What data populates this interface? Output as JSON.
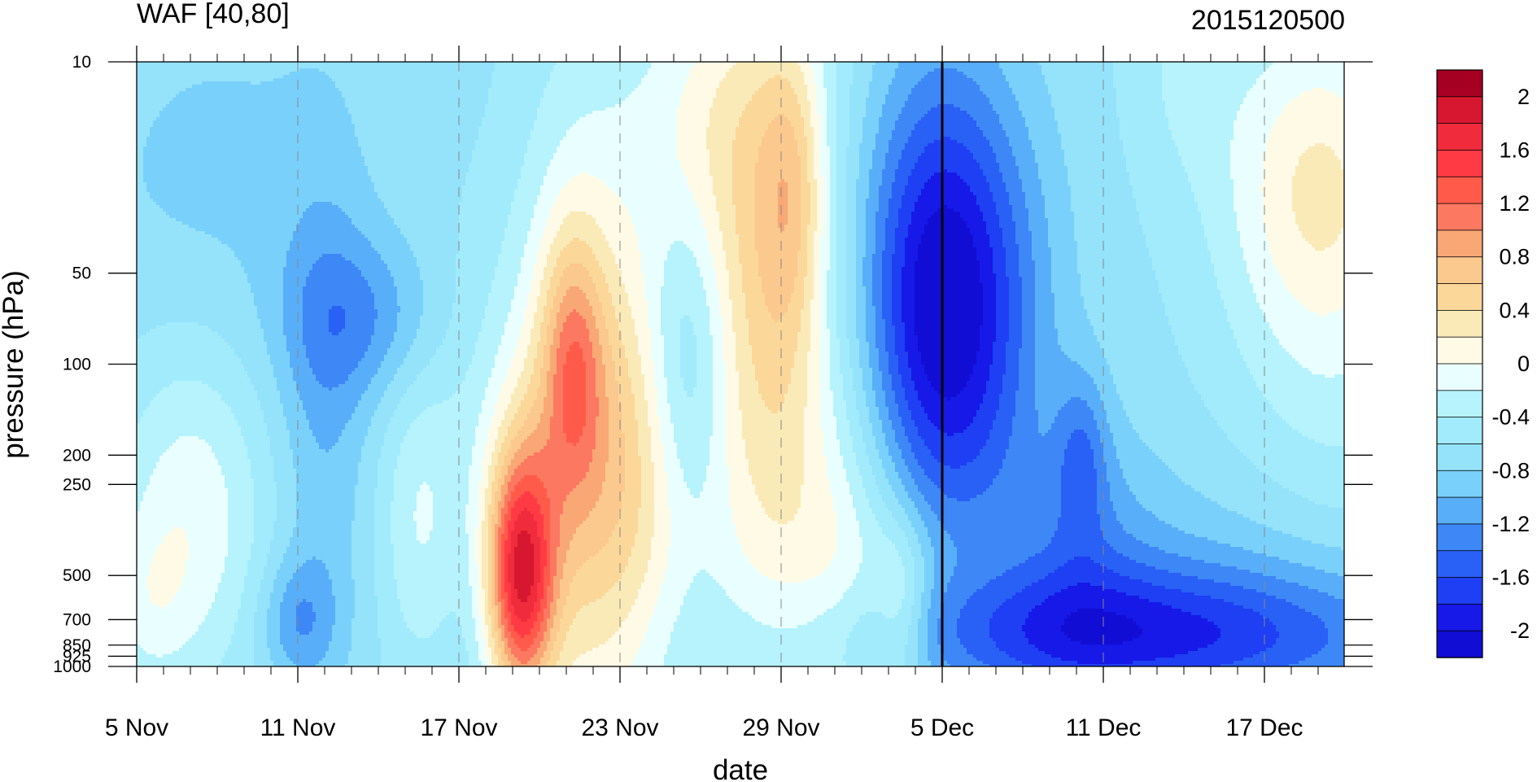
{
  "chart_data": {
    "type": "heatmap",
    "title": "WAF [40,80]",
    "subtitle": "2015120500",
    "xlabel": "date",
    "ylabel": "pressure (hPa)",
    "x_tick_labels": [
      "5 Nov",
      "11 Nov",
      "17 Nov",
      "23 Nov",
      "29 Nov",
      "5 Dec",
      "11 Dec",
      "17 Dec"
    ],
    "x_range": [
      "2015-11-05",
      "2015-12-21"
    ],
    "y_tick_labels": [
      "10",
      "50",
      "100",
      "200",
      "250",
      "500",
      "700",
      "850",
      "925",
      "1000"
    ],
    "y_ticks": [
      10,
      50,
      100,
      200,
      250,
      500,
      700,
      850,
      925,
      1000
    ],
    "y_scale": "log",
    "ylim": [
      1000,
      10
    ],
    "reference_date": "5 Dec",
    "colorbar": {
      "labels": [
        "2",
        "1.6",
        "1.2",
        "0.8",
        "0.4",
        "0",
        "-0.4",
        "-0.8",
        "-1.2",
        "-1.6",
        "-2"
      ],
      "levels": [
        2.2,
        2.0,
        1.8,
        1.6,
        1.4,
        1.2,
        1.0,
        0.8,
        0.6,
        0.4,
        0.2,
        0.0,
        -0.2,
        -0.4,
        -0.6,
        -0.8,
        -1.0,
        -1.2,
        -1.4,
        -1.6,
        -1.8,
        -2.0,
        -2.2
      ],
      "colors": [
        "#a50021",
        "#d7172f",
        "#f02c3c",
        "#ff3a45",
        "#ff5a4a",
        "#fd7860",
        "#f8a775",
        "#fbc88e",
        "#fbd79a",
        "#faeab8",
        "#fffae6",
        "#e9ffff",
        "#b6f3fc",
        "#a2ebfc",
        "#95e2fb",
        "#79d1fb",
        "#59aef9",
        "#3d87f7",
        "#2960f5",
        "#1e3ff3",
        "#1619e7",
        "#120dd5"
      ]
    },
    "grid": "dashed at labeled dates"
  }
}
